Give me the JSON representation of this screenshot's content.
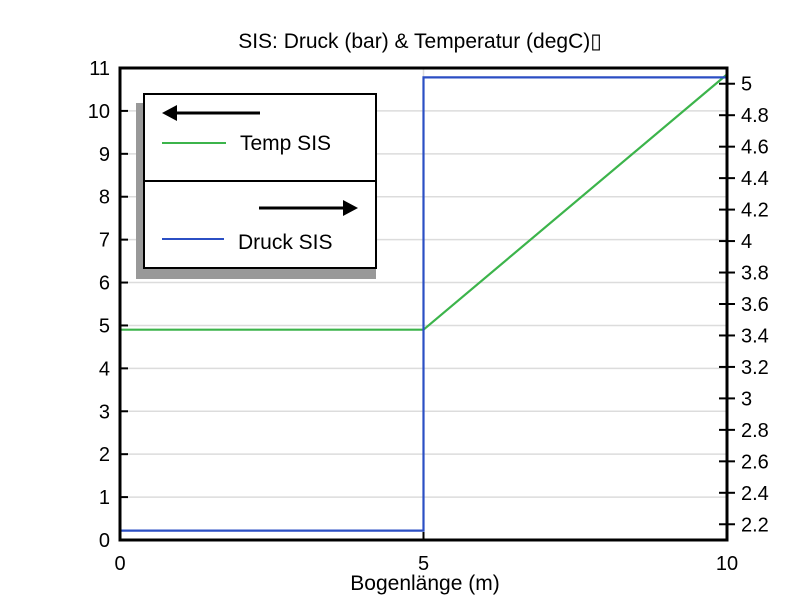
{
  "chart_data": {
    "type": "line",
    "title": "SIS: Druck (bar) & Temperatur (degC)▯",
    "xlabel": "Bogenlänge (m)",
    "ylabel_left": "",
    "ylabel_right": "",
    "xlim": [
      0,
      10
    ],
    "ylim_left": [
      0,
      11
    ],
    "ylim_right": [
      2.1,
      5.1
    ],
    "x_ticks": [
      "0",
      "5",
      "10"
    ],
    "y_left_ticks": [
      "0",
      "1",
      "2",
      "3",
      "4",
      "5",
      "6",
      "7",
      "8",
      "9",
      "10",
      "11"
    ],
    "y_right_ticks": [
      "2.2",
      "2.4",
      "2.6",
      "2.8",
      "3",
      "3.2",
      "3.4",
      "3.6",
      "3.8",
      "4",
      "4.2",
      "4.4",
      "4.6",
      "4.8",
      "5"
    ],
    "grid": true,
    "legend_position": "top-left",
    "series": [
      {
        "name": "Temp SIS",
        "axis": "left",
        "color": "#3cb44b",
        "x": [
          0,
          5,
          10
        ],
        "y": [
          4.9,
          4.9,
          10.85
        ]
      },
      {
        "name": "Druck SIS",
        "axis": "right",
        "color": "#2b4fc4",
        "x": [
          0,
          5,
          5,
          10
        ],
        "y": [
          2.16,
          2.16,
          5.04,
          5.04
        ]
      }
    ],
    "legend": [
      {
        "arrow": "left",
        "label": "Temp SIS",
        "color": "#3cb44b"
      },
      {
        "arrow": "right",
        "label": "Druck SIS",
        "color": "#2b4fc4"
      }
    ]
  }
}
